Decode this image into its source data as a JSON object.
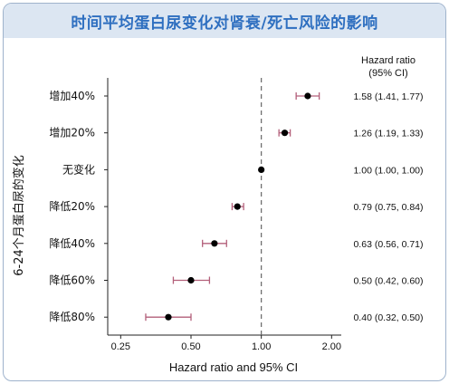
{
  "title": "时间平均蛋白尿变化对肾衰/死亡风险的影响",
  "colors": {
    "accent": "#2e6fc0",
    "header_bg": "#dce6f2",
    "ci_color": "#b35f7a",
    "reference_line": "#666666"
  },
  "chart_data": {
    "type": "forest",
    "scale": "log",
    "xlabel": "Hazard ratio and 95% CI",
    "ylabel": "6-24个月蛋白尿的变化",
    "xticks": [
      0.25,
      0.5,
      1.0,
      2.0
    ],
    "xtick_labels": [
      "0.25",
      "0.50",
      "1.00",
      "2.00"
    ],
    "xlim": [
      0.22,
      2.2
    ],
    "reference_line": 1.0,
    "right_header": [
      "Hazard ratio",
      "(95% CI)"
    ],
    "rows": [
      {
        "label": "增加40%",
        "hr": 1.58,
        "lo": 1.41,
        "hi": 1.77,
        "text": "1.58 (1.41, 1.77)"
      },
      {
        "label": "增加20%",
        "hr": 1.26,
        "lo": 1.19,
        "hi": 1.33,
        "text": "1.26 (1.19, 1.33)"
      },
      {
        "label": "无变化",
        "hr": 1.0,
        "lo": 1.0,
        "hi": 1.0,
        "text": "1.00 (1.00, 1.00)"
      },
      {
        "label": "降低20%",
        "hr": 0.79,
        "lo": 0.75,
        "hi": 0.84,
        "text": "0.79 (0.75, 0.84)"
      },
      {
        "label": "降低40%",
        "hr": 0.63,
        "lo": 0.56,
        "hi": 0.71,
        "text": "0.63 (0.56, 0.71)"
      },
      {
        "label": "降低60%",
        "hr": 0.5,
        "lo": 0.42,
        "hi": 0.6,
        "text": "0.50 (0.42, 0.60)"
      },
      {
        "label": "降低80%",
        "hr": 0.4,
        "lo": 0.32,
        "hi": 0.5,
        "text": "0.40 (0.32, 0.50)"
      }
    ]
  }
}
